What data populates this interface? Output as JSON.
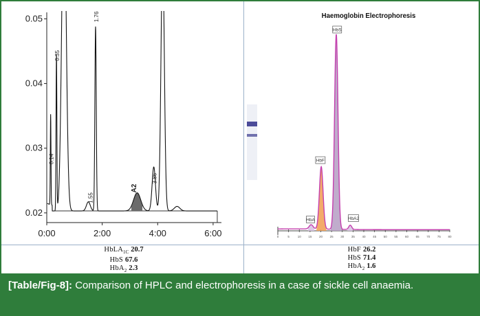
{
  "chart_data": [
    {
      "type": "line",
      "name": "hplc-chromatogram",
      "x_ticks": [
        "0:00",
        "2:00",
        "4:00",
        "6:00"
      ],
      "y_ticks": [
        "0.02",
        "0.03",
        "0.04",
        "0.05"
      ],
      "ylim": [
        0.0185,
        0.051
      ],
      "xlim": [
        0,
        6.3
      ],
      "peak_labels": [
        "0.14",
        "0.35",
        "1.76",
        "1.55",
        "3.86"
      ],
      "shaded_peak_label": "A2"
    },
    {
      "type": "line",
      "name": "electrophoresis",
      "title": "Haemoglobin Electrophoresis",
      "xlim": [
        0,
        80
      ],
      "x_tick_labels": [
        "0",
        "5",
        "10",
        "15",
        "20",
        "25",
        "30",
        "35",
        "40",
        "45",
        "50",
        "55",
        "60",
        "65",
        "70",
        "75",
        "80"
      ],
      "peak_labels": [
        "HbF",
        "HbS",
        "HbA",
        "HbA2"
      ]
    }
  ],
  "results": {
    "hplc": [
      {
        "label": "HbLA",
        "sub": "1C",
        "value": "20.7"
      },
      {
        "label": "HbS",
        "sub": "",
        "value": "67.6"
      },
      {
        "label": "HbA",
        "sub": "2",
        "value": "2.3"
      }
    ],
    "electrophoresis": [
      {
        "label": "HbF",
        "sub": "",
        "value": "26.2"
      },
      {
        "label": "HbS",
        "sub": "",
        "value": "71.4"
      },
      {
        "label": "HbA",
        "sub": "2",
        "value": "1.6"
      }
    ]
  },
  "caption": {
    "figure_ref": "[Table/Fig-8]:",
    "text": "Comparison of HPLC and electrophoresis in a case of sickle cell anaemia."
  },
  "colors": {
    "frame": "#2f7d3b",
    "divider": "#9bb1c9",
    "electro_curve": "#c43fae",
    "electro_fill_hbf": "#f2a25a",
    "electro_fill_hbs": "#b9a3c6",
    "electro_fill_small": "#d9c4e4",
    "hplc_fill": "#6b6b6b",
    "band": "#3a3a8f"
  }
}
